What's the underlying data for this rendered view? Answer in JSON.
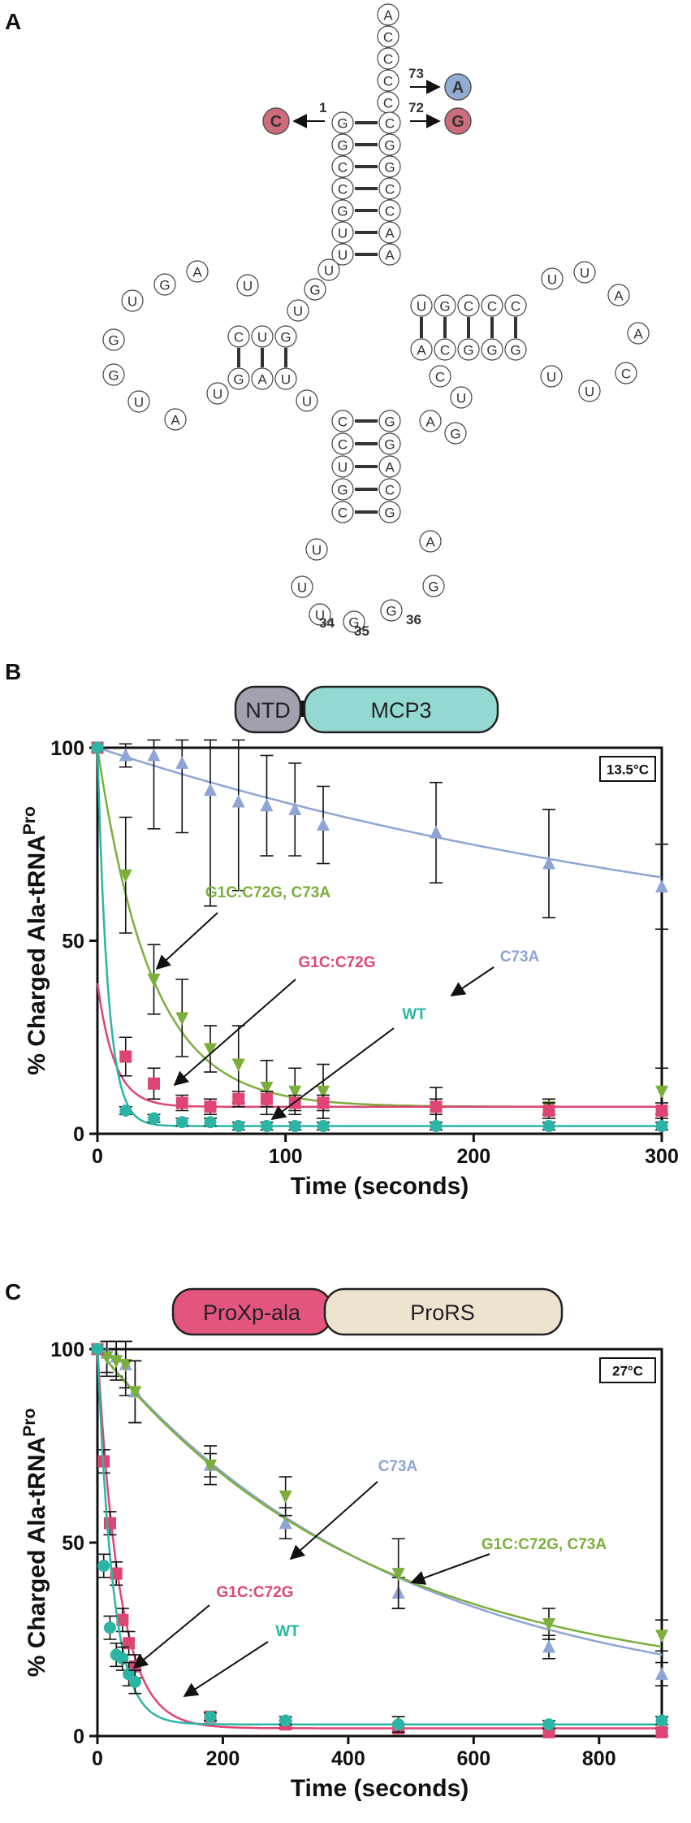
{
  "panels": {
    "a": "A",
    "b": "B",
    "c": "C"
  },
  "trna": {
    "nucleotides": {
      "acceptor_tail": [
        "A",
        "C",
        "C",
        "C",
        "C"
      ],
      "acceptor_5p": [
        "G",
        "G",
        "C",
        "C",
        "G",
        "U",
        "U"
      ],
      "acceptor_3p": [
        "C",
        "G",
        "G",
        "C",
        "C",
        "A",
        "A"
      ],
      "d_arm": [
        "U",
        "G",
        "A",
        "U",
        "G",
        "G",
        "U",
        "A",
        "U",
        "C",
        "U",
        "G",
        "G",
        "A",
        "U",
        "U"
      ],
      "anticodon_5p": [
        "C",
        "C",
        "U",
        "G",
        "C"
      ],
      "anticodon_3p": [
        "G",
        "G",
        "A",
        "C",
        "G"
      ],
      "anticodon_loop": [
        "U",
        "U",
        "U",
        "G",
        "G",
        "G",
        "A"
      ],
      "t_arm": [
        "U",
        "G",
        "C",
        "C",
        "C",
        "U",
        "U",
        "A",
        "A",
        "C",
        "C",
        "G",
        "G",
        "G",
        "U",
        "U",
        "C",
        "C",
        "U",
        "G"
      ]
    },
    "numbers": {
      "n1": "1",
      "n72": "72",
      "n73": "73",
      "n34": "34",
      "n35": "35",
      "n36": "36"
    },
    "mutations": {
      "g1c": "C",
      "c72g": "G",
      "c73a": "A"
    }
  },
  "colors": {
    "wt": "#2cb5a4",
    "g1c_c72g": "#df4573",
    "c73a": "#8ea5d6",
    "double": "#7cae3c",
    "mcp3": "#93d9d1",
    "ntd": "#a3a1ad",
    "proxp": "#e4557e",
    "pro_rs": "#ede4cf",
    "mut_c": "#cf6c7b",
    "mut_a": "#93acd5"
  },
  "domains_b": {
    "ntd": "NTD",
    "mcp3": "MCP3"
  },
  "domains_c": {
    "proxp": "ProXp-ala",
    "pro_rs": "ProRS"
  },
  "chart_data": [
    {
      "type": "scatter",
      "ylabel_main": "% Charged Ala-tRNA",
      "ylabel_sup": "Pro",
      "xlabel": "Time (seconds)",
      "temperature": "13.5°C",
      "xlim": [
        0,
        300
      ],
      "ylim": [
        0,
        100
      ],
      "xticks": [
        "0",
        "100",
        "200",
        "300"
      ],
      "yticks": [
        "0",
        "50",
        "100"
      ],
      "series": [
        {
          "name": "C73A",
          "marker": "triangle-up",
          "x": [
            0,
            15,
            30,
            45,
            60,
            75,
            90,
            105,
            120,
            180,
            240,
            300
          ],
          "y": [
            100,
            98,
            98,
            96,
            89,
            86,
            85,
            84,
            80,
            78,
            70,
            64
          ],
          "err": [
            0,
            3,
            19,
            18,
            30,
            23,
            13,
            12,
            10,
            13,
            14,
            11
          ],
          "fit": {
            "a": 62,
            "k": 0.0026,
            "c": 38
          }
        },
        {
          "name": "G1C:C72G, C73A",
          "marker": "triangle-down",
          "x": [
            0,
            15,
            30,
            45,
            60,
            75,
            90,
            105,
            120,
            180,
            240,
            300
          ],
          "y": [
            100,
            67,
            40,
            30,
            22,
            18,
            12,
            11,
            11,
            7,
            7,
            11
          ],
          "err": [
            0,
            15,
            9,
            10,
            6,
            10,
            7,
            6,
            7,
            5,
            2,
            6
          ],
          "fit": {
            "a": 93,
            "k": 0.035,
            "c": 7
          }
        },
        {
          "name": "G1C:C72G",
          "marker": "square",
          "x": [
            0,
            15,
            30,
            45,
            60,
            75,
            90,
            105,
            120,
            180,
            240,
            300
          ],
          "y": [
            100,
            20,
            13,
            8,
            7,
            9,
            9,
            8,
            8,
            7,
            6,
            6
          ],
          "err": [
            0,
            5,
            4,
            2,
            2,
            2,
            2,
            2,
            2,
            2,
            2,
            2
          ],
          "fit": {
            "a": 32,
            "k": 0.11,
            "c": 7
          }
        },
        {
          "name": "WT",
          "marker": "circle",
          "x": [
            0,
            15,
            30,
            45,
            60,
            75,
            90,
            105,
            120,
            180,
            240,
            300
          ],
          "y": [
            100,
            6,
            4,
            3,
            3,
            2,
            2,
            2,
            2,
            2,
            2,
            2
          ],
          "err": [
            0,
            1,
            1,
            1,
            1,
            1,
            1,
            1,
            1,
            1,
            1,
            1
          ],
          "fit": {
            "a": 98,
            "k": 0.18,
            "c": 2
          }
        }
      ],
      "annotations": [
        {
          "text": "C73A",
          "series": "C73A"
        },
        {
          "text": "G1C:C72G, C73A",
          "series": "G1C:C72G, C73A"
        },
        {
          "text": "G1C:C72G",
          "series": "G1C:C72G"
        },
        {
          "text": "WT",
          "series": "WT"
        }
      ]
    },
    {
      "type": "scatter",
      "ylabel_main": "% Charged Ala-tRNA",
      "ylabel_sup": "Pro",
      "xlabel": "Time (seconds)",
      "temperature": "27°C",
      "xlim": [
        0,
        900
      ],
      "ylim": [
        0,
        100
      ],
      "xticks": [
        "0",
        "200",
        "400",
        "600",
        "800"
      ],
      "yticks": [
        "0",
        "50",
        "100"
      ],
      "series": [
        {
          "name": "C73A",
          "marker": "triangle-up",
          "x": [
            0,
            15,
            30,
            45,
            60,
            180,
            300,
            480,
            720,
            900
          ],
          "y": [
            100,
            99,
            98,
            96,
            89,
            70,
            55,
            37,
            23,
            16
          ],
          "err": [
            0,
            5,
            5,
            8,
            8,
            3,
            4,
            4,
            3,
            3
          ],
          "fit": {
            "a": 93,
            "k": 0.0021,
            "c": 7
          }
        },
        {
          "name": "G1C:C72G, C73A",
          "marker": "triangle-down",
          "x": [
            0,
            15,
            30,
            45,
            60,
            180,
            300,
            480,
            720,
            900
          ],
          "y": [
            100,
            98,
            97,
            96,
            89,
            70,
            62,
            42,
            29,
            26
          ],
          "err": [
            0,
            5,
            5,
            6,
            8,
            5,
            5,
            9,
            4,
            4
          ],
          "fit": {
            "a": 88,
            "k": 0.0023,
            "c": 12
          }
        },
        {
          "name": "G1C:C72G",
          "marker": "square",
          "x": [
            0,
            10,
            20,
            30,
            40,
            50,
            60,
            180,
            300,
            480,
            720,
            900
          ],
          "y": [
            100,
            71,
            55,
            42,
            30,
            24,
            18,
            5,
            3,
            2,
            1,
            1
          ],
          "err": [
            0,
            3,
            3,
            3,
            3,
            3,
            3,
            1,
            1,
            1,
            1,
            1
          ],
          "fit": {
            "a": 98,
            "k": 0.028,
            "c": 2
          }
        },
        {
          "name": "WT",
          "marker": "circle",
          "x": [
            0,
            10,
            20,
            30,
            40,
            50,
            60,
            180,
            300,
            480,
            720,
            900
          ],
          "y": [
            100,
            44,
            28,
            21,
            20,
            16,
            14,
            5,
            4,
            3,
            3,
            4
          ],
          "err": [
            0,
            3,
            3,
            3,
            3,
            3,
            3,
            1,
            1,
            2,
            1,
            1
          ],
          "fit": {
            "a": 97,
            "k": 0.04,
            "c": 3
          }
        }
      ],
      "annotations": [
        {
          "text": "C73A",
          "series": "C73A"
        },
        {
          "text": "G1C:C72G, C73A",
          "series": "G1C:C72G, C73A"
        },
        {
          "text": "G1C:C72G",
          "series": "G1C:C72G"
        },
        {
          "text": "WT",
          "series": "WT"
        }
      ]
    }
  ]
}
